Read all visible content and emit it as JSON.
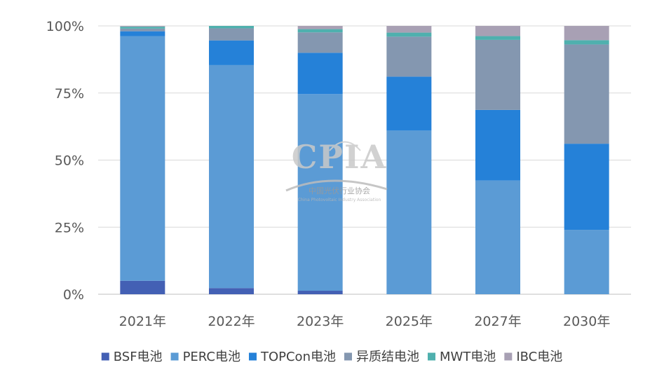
{
  "chart_data": {
    "type": "bar",
    "stacked": true,
    "normalized": true,
    "categories": [
      "2021年",
      "2022年",
      "2023年",
      "2025年",
      "2027年",
      "2030年"
    ],
    "y_ticks": [
      "0%",
      "25%",
      "50%",
      "75%",
      "100%"
    ],
    "ylim": [
      0,
      100
    ],
    "grid": true,
    "legend_position": "bottom",
    "series": [
      {
        "name": "BSF电池",
        "color": "#4360b4",
        "values": [
          5,
          2.3,
          1.3,
          0,
          0,
          0
        ]
      },
      {
        "name": "PERC电池",
        "color": "#5b9bd5",
        "values": [
          91.2,
          83.1,
          73.3,
          61,
          42.4,
          24
        ]
      },
      {
        "name": "TOPCon电池",
        "color": "#2581d8",
        "values": [
          1.8,
          9.2,
          15.4,
          20.1,
          26.3,
          32.1
        ]
      },
      {
        "name": "异质结电池",
        "color": "#8497b0",
        "values": [
          1,
          4.5,
          7.6,
          14.9,
          26.1,
          37
        ]
      },
      {
        "name": "MWT电池",
        "color": "#4fb0ae",
        "values": [
          0.7,
          0.9,
          1.2,
          1.5,
          1.4,
          1.6
        ]
      },
      {
        "name": "IBC电池",
        "color": "#a8a0b4",
        "values": [
          0.3,
          0,
          1.2,
          2.5,
          3.8,
          5.3
        ]
      }
    ]
  },
  "watermark": {
    "title": "CPIA",
    "subtitle": "中国光伏行业协会",
    "subtitle_en": "China Photovoltaic Industry Association"
  }
}
